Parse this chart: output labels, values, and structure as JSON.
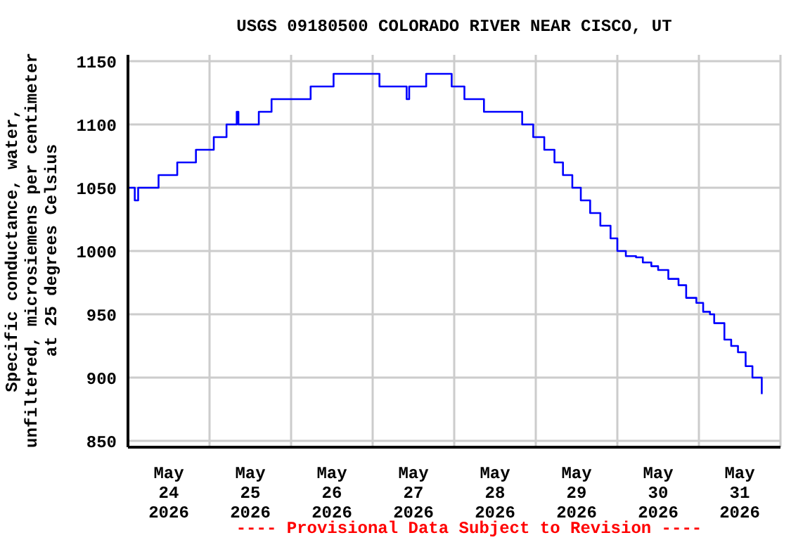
{
  "chart_data": {
    "type": "step",
    "title": "USGS 09180500 COLORADO RIVER NEAR CISCO, UT",
    "ylabel": "Specific conductance, water,\nunfiltered, microsiemens per centimeter\nat 25 degrees Celsius",
    "annotations": [
      "---- Provisional Data Subject to Revision ----"
    ],
    "x": [
      "2026-05-24T00:00",
      "2026-05-24T02:00",
      "2026-05-24T03:00",
      "2026-05-24T09:00",
      "2026-05-24T14:30",
      "2026-05-24T20:00",
      "2026-05-25T01:15",
      "2026-05-25T05:00",
      "2026-05-25T08:00",
      "2026-05-25T08:30",
      "2026-05-25T14:30",
      "2026-05-25T18:15",
      "2026-05-26T05:45",
      "2026-05-26T12:30",
      "2026-05-27T02:00",
      "2026-05-27T10:00",
      "2026-05-27T10:45",
      "2026-05-27T15:45",
      "2026-05-27T23:15",
      "2026-05-28T03:00",
      "2026-05-28T08:45",
      "2026-05-28T20:00",
      "2026-05-28T23:15",
      "2026-05-29T02:30",
      "2026-05-29T05:30",
      "2026-05-29T08:00",
      "2026-05-29T10:45",
      "2026-05-29T13:15",
      "2026-05-29T16:00",
      "2026-05-29T19:00",
      "2026-05-29T22:00",
      "2026-05-30T00:00",
      "2026-05-30T02:30",
      "2026-05-30T05:30",
      "2026-05-30T07:30",
      "2026-05-30T10:00",
      "2026-05-30T12:00",
      "2026-05-30T15:00",
      "2026-05-30T18:00",
      "2026-05-30T20:15",
      "2026-05-30T23:15",
      "2026-05-31T01:15",
      "2026-05-31T03:15",
      "2026-05-31T04:30",
      "2026-05-31T07:30",
      "2026-05-31T09:30",
      "2026-05-31T11:30",
      "2026-05-31T13:45",
      "2026-05-31T15:45",
      "2026-05-31T18:30"
    ],
    "series": [
      {
        "color": "#0000ff",
        "values": [
          1050,
          1040,
          1050,
          1060,
          1070,
          1080,
          1090,
          1100,
          1110,
          1100,
          1110,
          1120,
          1130,
          1140,
          1130,
          1120,
          1130,
          1140,
          1130,
          1120,
          1110,
          1100,
          1090,
          1080,
          1070,
          1060,
          1050,
          1040,
          1030,
          1020,
          1010,
          1000,
          996,
          995,
          991,
          988,
          985,
          978,
          973,
          963,
          959,
          952,
          950,
          943,
          930,
          925,
          920,
          909,
          900,
          887
        ]
      }
    ],
    "xlim": [
      "2026-05-24T00:00",
      "2026-06-01T00:00"
    ],
    "xticks": [
      {
        "value": "2026-05-24T00:00",
        "label": null
      },
      {
        "value": "2026-05-24T12:00",
        "label": "May\n24\n2026"
      },
      {
        "value": "2026-05-25T00:00",
        "label": null
      },
      {
        "value": "2026-05-25T12:00",
        "label": "May\n25\n2026"
      },
      {
        "value": "2026-05-26T00:00",
        "label": null
      },
      {
        "value": "2026-05-26T12:00",
        "label": "May\n26\n2026"
      },
      {
        "value": "2026-05-27T00:00",
        "label": null
      },
      {
        "value": "2026-05-27T12:00",
        "label": "May\n27\n2026"
      },
      {
        "value": "2026-05-28T00:00",
        "label": null
      },
      {
        "value": "2026-05-28T12:00",
        "label": "May\n28\n2026"
      },
      {
        "value": "2026-05-29T00:00",
        "label": null
      },
      {
        "value": "2026-05-29T12:00",
        "label": "May\n29\n2026"
      },
      {
        "value": "2026-05-30T00:00",
        "label": null
      },
      {
        "value": "2026-05-30T12:00",
        "label": "May\n30\n2026"
      },
      {
        "value": "2026-05-31T00:00",
        "label": null
      },
      {
        "value": "2026-05-31T12:00",
        "label": "May\n31\n2026"
      },
      {
        "value": "2026-06-01T00:00",
        "label": null
      }
    ],
    "ylim": [
      845,
      1155
    ],
    "yticks": [
      850,
      900,
      950,
      1000,
      1050,
      1100,
      1150
    ],
    "grid": true
  }
}
